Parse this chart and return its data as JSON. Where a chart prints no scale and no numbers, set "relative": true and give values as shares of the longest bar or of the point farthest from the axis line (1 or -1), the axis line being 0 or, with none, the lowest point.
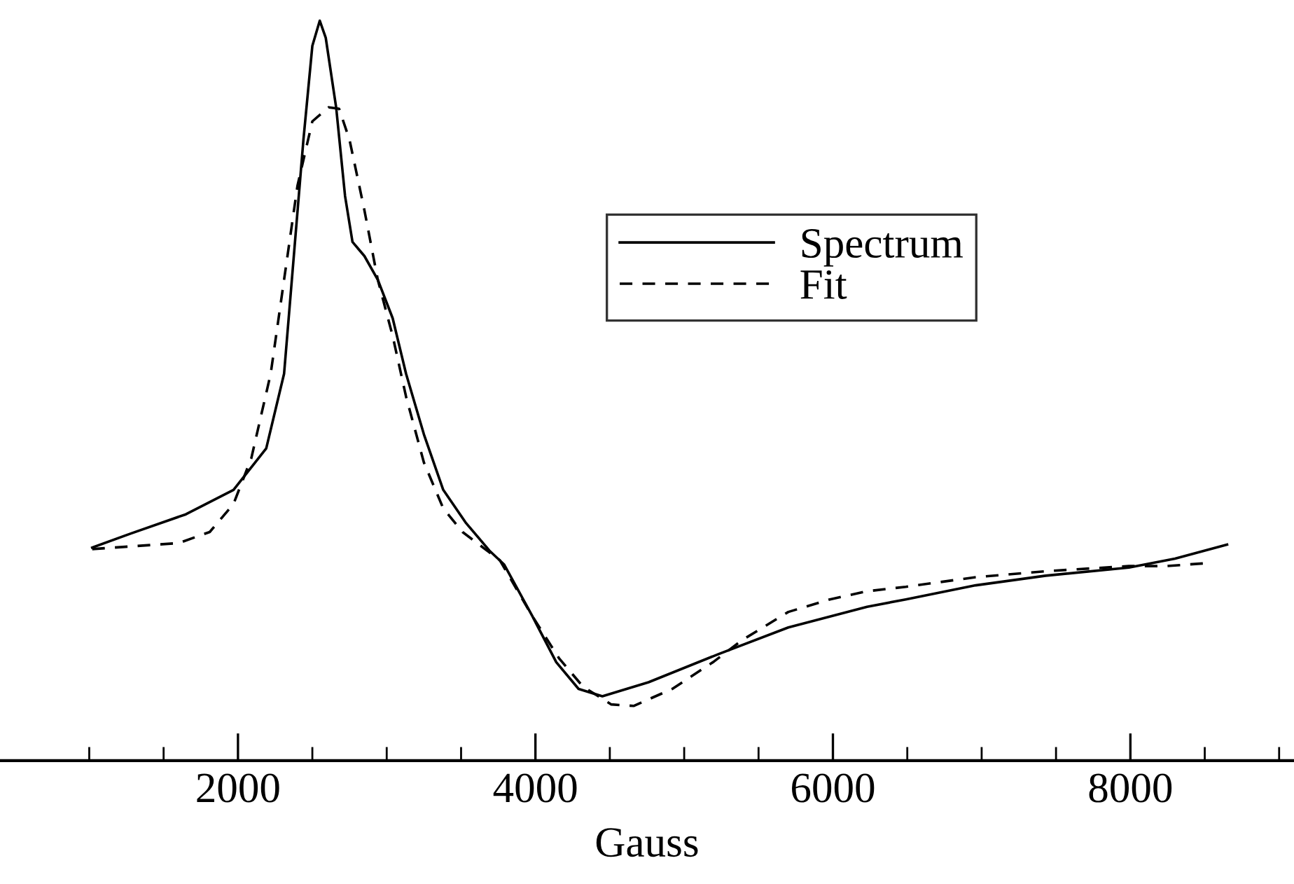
{
  "chart_data": {
    "type": "line",
    "relative": true,
    "xlabel": "Gauss",
    "xlim": [
      400,
      9100
    ],
    "xticks": [
      {
        "value": 1000,
        "label": null
      },
      {
        "value": 1500,
        "label": null
      },
      2000,
      {
        "value": 2500,
        "label": null
      },
      {
        "value": 3000,
        "label": null
      },
      {
        "value": 3500,
        "label": null
      },
      4000,
      {
        "value": 4500,
        "label": null
      },
      {
        "value": 5000,
        "label": null
      },
      {
        "value": 5500,
        "label": null
      },
      6000,
      {
        "value": 6500,
        "label": null
      },
      {
        "value": 7000,
        "label": null
      },
      {
        "value": 7500,
        "label": null
      },
      8000,
      {
        "value": 8500,
        "label": null
      },
      {
        "value": 9000,
        "label": null
      }
    ],
    "legend": "top right",
    "grid": false,
    "series": [
      {
        "name": "Spectrum",
        "color": "#000000",
        "line_style": "solid",
        "x": [
          1020,
          1280,
          1650,
          1970,
          2190,
          2310,
          2380,
          2440,
          2500,
          2550,
          2590,
          2660,
          2720,
          2770,
          2850,
          2940,
          3040,
          3130,
          3250,
          3380,
          3530,
          3690,
          3790,
          3980,
          4140,
          4290,
          4450,
          4760,
          5230,
          5700,
          6230,
          6490,
          6960,
          7430,
          7990,
          8300,
          8650
        ],
        "values": [
          0.288,
          0.307,
          0.333,
          0.366,
          0.422,
          0.523,
          0.693,
          0.839,
          0.966,
          1,
          0.977,
          0.883,
          0.763,
          0.701,
          0.682,
          0.65,
          0.598,
          0.523,
          0.441,
          0.366,
          0.322,
          0.284,
          0.265,
          0.195,
          0.133,
          0.097,
          0.087,
          0.106,
          0.144,
          0.18,
          0.208,
          0.218,
          0.237,
          0.25,
          0.261,
          0.273,
          0.292
        ]
      },
      {
        "name": "Fit",
        "color": "#000000",
        "line_style": "dashed",
        "x": [
          1020,
          1600,
          1810,
          1970,
          2090,
          2220,
          2310,
          2400,
          2500,
          2610,
          2680,
          2750,
          2850,
          2940,
          3040,
          3130,
          3250,
          3380,
          3510,
          3760,
          3980,
          4160,
          4320,
          4510,
          4660,
          4920,
          5200,
          5390,
          5700,
          5980,
          6230,
          6490,
          6960,
          7430,
          7990,
          8240,
          8520
        ],
        "values": [
          0.286,
          0.294,
          0.309,
          0.347,
          0.409,
          0.523,
          0.65,
          0.777,
          0.864,
          0.883,
          0.881,
          0.839,
          0.744,
          0.65,
          0.574,
          0.492,
          0.403,
          0.341,
          0.309,
          0.271,
          0.195,
          0.138,
          0.1,
          0.076,
          0.074,
          0.097,
          0.134,
          0.163,
          0.201,
          0.218,
          0.229,
          0.235,
          0.248,
          0.256,
          0.263,
          0.263,
          0.267
        ]
      }
    ]
  }
}
